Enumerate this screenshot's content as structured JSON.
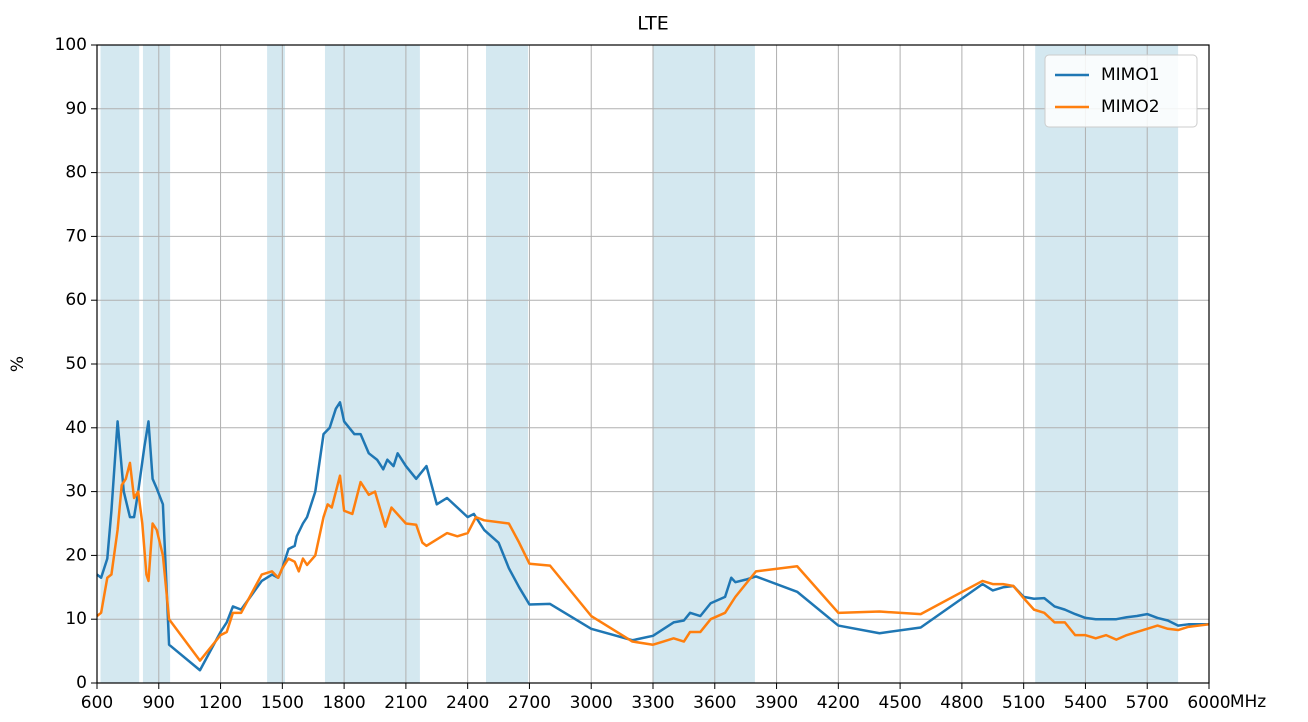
{
  "chart_data": {
    "type": "line",
    "title": "LTE",
    "xlabel": "MHz",
    "ylabel": "%",
    "xlim": [
      600,
      6000
    ],
    "xticks": [
      600,
      900,
      1200,
      1500,
      1800,
      2100,
      2400,
      2700,
      3000,
      3300,
      3600,
      3900,
      4200,
      4500,
      4800,
      5100,
      5400,
      5700,
      6000
    ],
    "ylim": [
      0,
      100
    ],
    "yticks": [
      0,
      10,
      20,
      30,
      40,
      50,
      60,
      70,
      80,
      90,
      100
    ],
    "grid": true,
    "legend": "upper right",
    "band_color": "#d4e8f0",
    "shaded_bands": [
      [
        617,
        805
      ],
      [
        823,
        955
      ],
      [
        1426,
        1513
      ],
      [
        1707,
        2168
      ],
      [
        2489,
        2693
      ],
      [
        3300,
        3795
      ],
      [
        5156,
        5850
      ]
    ],
    "series": [
      {
        "name": "MIMO1",
        "color": "#1f77b4",
        "x": [
          600,
          620,
          650,
          670,
          700,
          730,
          760,
          780,
          800,
          830,
          850,
          870,
          890,
          920,
          950,
          1100,
          1200,
          1230,
          1260,
          1300,
          1400,
          1450,
          1480,
          1500,
          1530,
          1560,
          1570,
          1600,
          1620,
          1660,
          1700,
          1730,
          1760,
          1780,
          1800,
          1850,
          1880,
          1920,
          1960,
          1990,
          2010,
          2040,
          2060,
          2100,
          2150,
          2200,
          2250,
          2300,
          2400,
          2430,
          2460,
          2480,
          2550,
          2600,
          2650,
          2700,
          2800,
          3000,
          3200,
          3300,
          3400,
          3450,
          3480,
          3530,
          3580,
          3650,
          3680,
          3700,
          3750,
          3800,
          4000,
          4200,
          4400,
          4600,
          4900,
          4950,
          5000,
          5050,
          5100,
          5150,
          5200,
          5250,
          5300,
          5350,
          5400,
          5450,
          5500,
          5550,
          5600,
          5650,
          5700,
          5750,
          5800,
          5850,
          5900,
          6000
        ],
        "values": [
          17,
          16.5,
          19.5,
          27,
          41,
          30,
          26,
          26,
          30,
          37,
          41,
          32,
          30.5,
          28,
          6,
          2,
          8,
          9.5,
          12,
          11.5,
          16,
          17,
          16.5,
          18,
          21,
          21.5,
          23,
          25,
          26,
          30,
          39,
          40,
          43,
          44,
          41,
          39,
          39,
          36,
          35,
          33.5,
          35,
          34,
          36,
          34,
          32,
          34,
          28,
          29,
          26,
          26.5,
          25,
          24,
          22,
          18,
          15,
          12.3,
          12.4,
          8.5,
          6.7,
          7.4,
          9.5,
          9.8,
          11,
          10.5,
          12.5,
          13.5,
          16.5,
          15.8,
          16.2,
          16.7,
          14.3,
          9,
          7.8,
          8.7,
          15.5,
          14.5,
          15,
          15.2,
          13.5,
          13.2,
          13.3,
          12,
          11.5,
          10.8,
          10.2,
          10,
          10,
          10,
          10.3,
          10.5,
          10.8,
          10.2,
          9.8,
          9,
          9.2,
          9.2
        ]
      },
      {
        "name": "MIMO2",
        "color": "#ff7f0e",
        "x": [
          600,
          620,
          650,
          670,
          700,
          720,
          740,
          760,
          780,
          800,
          820,
          840,
          850,
          870,
          890,
          920,
          950,
          1100,
          1200,
          1230,
          1260,
          1300,
          1400,
          1450,
          1480,
          1500,
          1530,
          1560,
          1580,
          1600,
          1620,
          1660,
          1700,
          1720,
          1740,
          1780,
          1800,
          1840,
          1880,
          1920,
          1950,
          2000,
          2030,
          2100,
          2150,
          2180,
          2200,
          2300,
          2350,
          2400,
          2440,
          2480,
          2600,
          2650,
          2700,
          2800,
          3000,
          3200,
          3300,
          3350,
          3400,
          3450,
          3480,
          3530,
          3580,
          3650,
          3700,
          3800,
          4000,
          4200,
          4400,
          4600,
          4900,
          4950,
          5000,
          5050,
          5100,
          5150,
          5200,
          5250,
          5300,
          5350,
          5400,
          5450,
          5500,
          5550,
          5600,
          5650,
          5700,
          5750,
          5800,
          5850,
          5900,
          6000
        ],
        "values": [
          10.5,
          11,
          16.5,
          17,
          24,
          31,
          32,
          34.5,
          29,
          30,
          25,
          17,
          16,
          25,
          24,
          20,
          10,
          3.5,
          7.5,
          8,
          11,
          11,
          17,
          17.5,
          16.5,
          18,
          19.5,
          19,
          17.5,
          19.5,
          18.5,
          20,
          26,
          28,
          27.5,
          32.5,
          27,
          26.5,
          31.5,
          29.5,
          30,
          24.5,
          27.5,
          25,
          24.8,
          22,
          21.5,
          23.5,
          23,
          23.5,
          26,
          25.5,
          25,
          22,
          18.7,
          18.4,
          10.5,
          6.5,
          6,
          6.5,
          7,
          6.5,
          8,
          8,
          10,
          11,
          13.5,
          17.5,
          18.3,
          11,
          11.2,
          10.8,
          16,
          15.5,
          15.5,
          15.2,
          13.3,
          11.5,
          11,
          9.5,
          9.5,
          7.5,
          7.5,
          7,
          7.5,
          6.8,
          7.5,
          8,
          8.5,
          9,
          8.5,
          8.3,
          8.8,
          9.2
        ]
      }
    ]
  }
}
